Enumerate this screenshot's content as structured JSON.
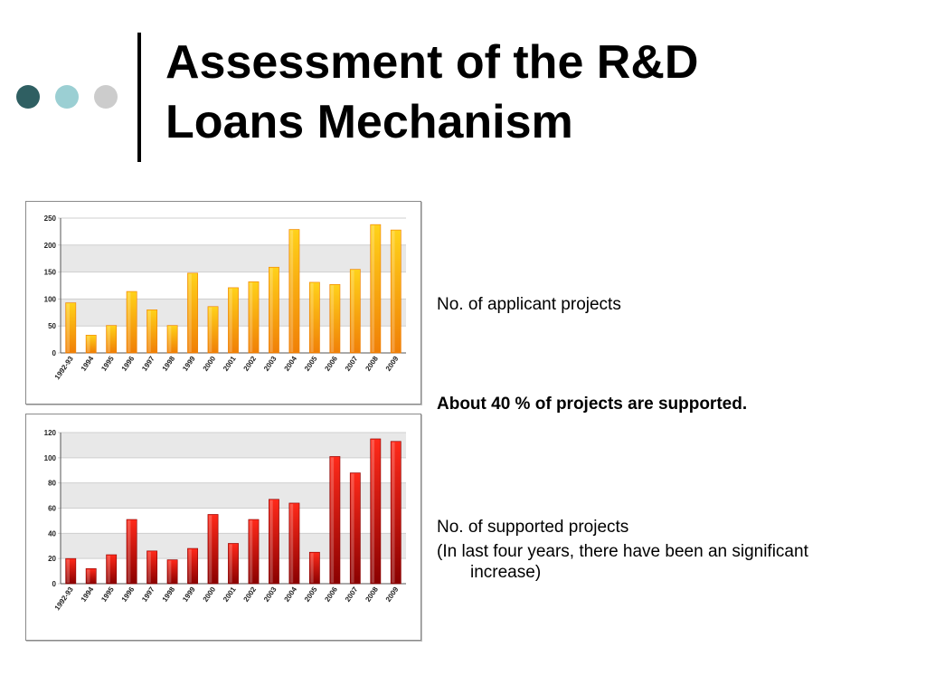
{
  "colors": {
    "dot1": "#2f5f62",
    "dot2": "#9bcfd3",
    "dot3": "#cccccc",
    "bar_top_chart_light": "#ffd21a",
    "bar_top_chart_dark": "#f07f06",
    "bar_bottom_chart_light": "#ff2a1a",
    "bar_bottom_chart_dark": "#8a0000",
    "grid_band": "#e8e8e8"
  },
  "slide": {
    "title_line1": "Assessment of the R&D",
    "title_line2": "Loans Mechanism"
  },
  "notes": {
    "applicant_label": "No. of applicant projects",
    "supported_ratio": "About 40 % of projects are supported.",
    "supported_label": "No. of supported projects",
    "supported_comment": "(In last four years, there have been an significant increase)"
  },
  "chart_data": [
    {
      "type": "bar",
      "categories": [
        "1992-93",
        "1994",
        "1995",
        "1996",
        "1997",
        "1998",
        "1999",
        "2000",
        "2001",
        "2002",
        "2003",
        "2004",
        "2005",
        "2006",
        "2007",
        "2008",
        "2009"
      ],
      "series": [
        {
          "values": [
            93,
            33,
            51,
            114,
            80,
            51,
            148,
            86,
            121,
            132,
            159,
            229,
            131,
            127,
            155,
            238,
            228
          ]
        }
      ],
      "ylim": [
        0,
        250
      ],
      "yticks": [
        0,
        50,
        100,
        150,
        200,
        250
      ],
      "grid": true
    },
    {
      "type": "bar",
      "categories": [
        "1992-93",
        "1994",
        "1995",
        "1996",
        "1997",
        "1998",
        "1999",
        "2000",
        "2001",
        "2002",
        "2003",
        "2004",
        "2005",
        "2006",
        "2007",
        "2008",
        "2009"
      ],
      "series": [
        {
          "values": [
            20,
            12,
            23,
            51,
            26,
            19,
            28,
            55,
            32,
            51,
            67,
            64,
            25,
            101,
            88,
            115,
            113
          ]
        }
      ],
      "ylim": [
        0,
        120
      ],
      "yticks": [
        0,
        20,
        40,
        60,
        80,
        100,
        120
      ],
      "grid": true
    }
  ]
}
